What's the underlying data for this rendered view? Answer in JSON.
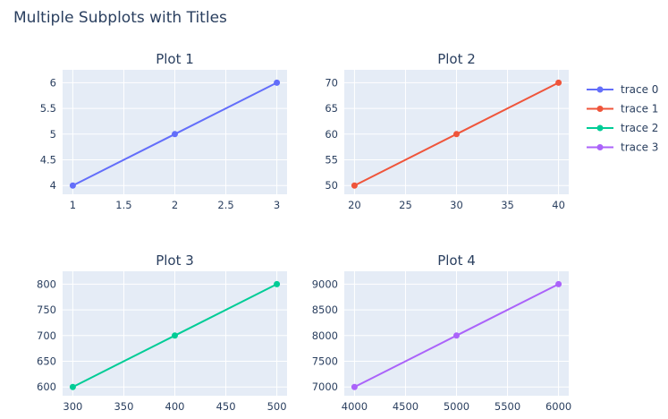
{
  "title": "Multiple Subplots with Titles",
  "legend": {
    "position": "right",
    "entries": [
      {
        "name": "trace 0",
        "color": "#636efa"
      },
      {
        "name": "trace 1",
        "color": "#EF553B"
      },
      {
        "name": "trace 2",
        "color": "#00cc96"
      },
      {
        "name": "trace 3",
        "color": "#ab63fa"
      }
    ]
  },
  "chart_data": [
    {
      "type": "line",
      "title": "Plot 1",
      "series_name": "trace 0",
      "color": "#636efa",
      "x": [
        1,
        2,
        3
      ],
      "y": [
        4,
        5,
        6
      ],
      "xlim": [
        0.9,
        3.1
      ],
      "ylim": [
        3.83,
        6.25
      ],
      "xticks": [
        1,
        1.5,
        2,
        2.5,
        3
      ],
      "yticks": [
        4,
        4.5,
        5,
        5.5,
        6
      ],
      "xtick_labels": [
        "1",
        "1.5",
        "2",
        "2.5",
        "3"
      ],
      "ytick_labels": [
        "4",
        "4.5",
        "5",
        "5.5",
        "6"
      ]
    },
    {
      "type": "line",
      "title": "Plot 2",
      "series_name": "trace 1",
      "color": "#EF553B",
      "x": [
        20,
        30,
        40
      ],
      "y": [
        50,
        60,
        70
      ],
      "xlim": [
        19,
        41
      ],
      "ylim": [
        48.3,
        72.5
      ],
      "xticks": [
        20,
        25,
        30,
        35,
        40
      ],
      "yticks": [
        50,
        55,
        60,
        65,
        70
      ],
      "xtick_labels": [
        "20",
        "25",
        "30",
        "35",
        "40"
      ],
      "ytick_labels": [
        "50",
        "55",
        "60",
        "65",
        "70"
      ]
    },
    {
      "type": "line",
      "title": "Plot 3",
      "series_name": "trace 2",
      "color": "#00cc96",
      "x": [
        300,
        400,
        500
      ],
      "y": [
        600,
        700,
        800
      ],
      "xlim": [
        290,
        510
      ],
      "ylim": [
        583,
        825
      ],
      "xticks": [
        300,
        350,
        400,
        450,
        500
      ],
      "yticks": [
        600,
        650,
        700,
        750,
        800
      ],
      "xtick_labels": [
        "300",
        "350",
        "400",
        "450",
        "500"
      ],
      "ytick_labels": [
        "600",
        "650",
        "700",
        "750",
        "800"
      ]
    },
    {
      "type": "line",
      "title": "Plot 4",
      "series_name": "trace 3",
      "color": "#ab63fa",
      "x": [
        4000,
        5000,
        6000
      ],
      "y": [
        7000,
        8000,
        9000
      ],
      "xlim": [
        3900,
        6100
      ],
      "ylim": [
        6830,
        9250
      ],
      "xticks": [
        4000,
        4500,
        5000,
        5500,
        6000
      ],
      "yticks": [
        7000,
        7500,
        8000,
        8500,
        9000
      ],
      "xtick_labels": [
        "4000",
        "4500",
        "5000",
        "5500",
        "6000"
      ],
      "ytick_labels": [
        "7000",
        "7500",
        "8000",
        "8500",
        "9000"
      ]
    }
  ]
}
